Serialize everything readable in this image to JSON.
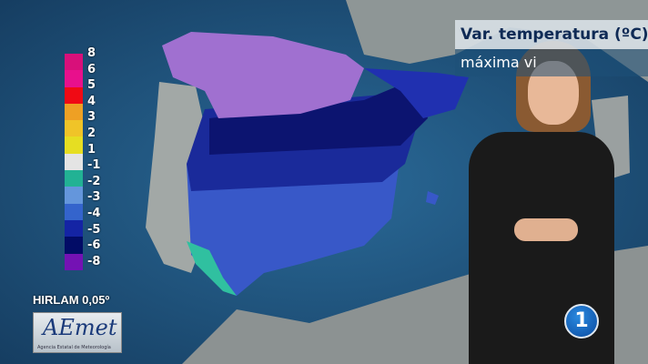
{
  "header": {
    "title": "Var. temperatura (ºC)",
    "subtitle": "máxima vi"
  },
  "legend": {
    "labels": [
      "8",
      "6",
      "5",
      "4",
      "3",
      "2",
      "1",
      "-1",
      "-2",
      "-3",
      "-4",
      "-5",
      "-6",
      "-8"
    ],
    "colors": [
      "#d8107a",
      "#e8108c",
      "#f00a14",
      "#eea024",
      "#f0c428",
      "#e6de22",
      "#e4e4e4",
      "#22b294",
      "#6496dc",
      "#3464cc",
      "#1424a4",
      "#020c66",
      "#7412b4"
    ]
  },
  "model_label": "HIRLAM 0,05º",
  "logo": {
    "text": "AEmet",
    "subtitle": "Agencia Estatal de Meteorología"
  },
  "channel_logo": "1",
  "map_colors": {
    "sea": "#1d5a85",
    "land": "#9aa0a0",
    "north": "#a070d0",
    "deep": "#101878",
    "mid": "#2838b8",
    "south": "#3858c8"
  }
}
